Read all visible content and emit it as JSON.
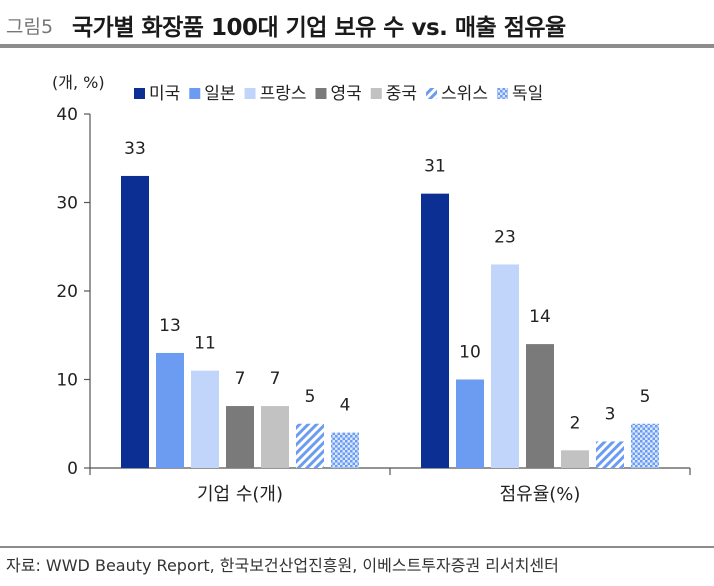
{
  "header": {
    "label": "그림5",
    "title": "국가별 화장품 100대 기업 보유 수 vs. 매출 점유율"
  },
  "chart_data": {
    "type": "bar",
    "unit_label": "(개, %)",
    "categories": [
      "기업 수(개)",
      "점유율(%)"
    ],
    "series": [
      {
        "name": "미국",
        "values": [
          33,
          31
        ],
        "color": "#0b2f93",
        "pattern": "solid"
      },
      {
        "name": "일본",
        "values": [
          13,
          10
        ],
        "color": "#6b9cf2",
        "pattern": "solid"
      },
      {
        "name": "프랑스",
        "values": [
          11,
          23
        ],
        "color": "#c0d5f9",
        "pattern": "solid"
      },
      {
        "name": "영국",
        "values": [
          7,
          14
        ],
        "color": "#7a7a7a",
        "pattern": "solid"
      },
      {
        "name": "중국",
        "values": [
          7,
          2
        ],
        "color": "#c2c2c2",
        "pattern": "solid"
      },
      {
        "name": "스위스",
        "values": [
          5,
          3
        ],
        "color": "#6b9cf2",
        "pattern": "hatch"
      },
      {
        "name": "독일",
        "values": [
          4,
          5
        ],
        "color": "#6b9cf2",
        "pattern": "dots"
      }
    ],
    "yticks": [
      0,
      10,
      20,
      30,
      40
    ],
    "ylim": [
      0,
      40
    ],
    "legend_position": "top"
  },
  "source": "자료: WWD Beauty Report, 한국보건산업진흥원, 이베스트투자증권 리서치센터"
}
